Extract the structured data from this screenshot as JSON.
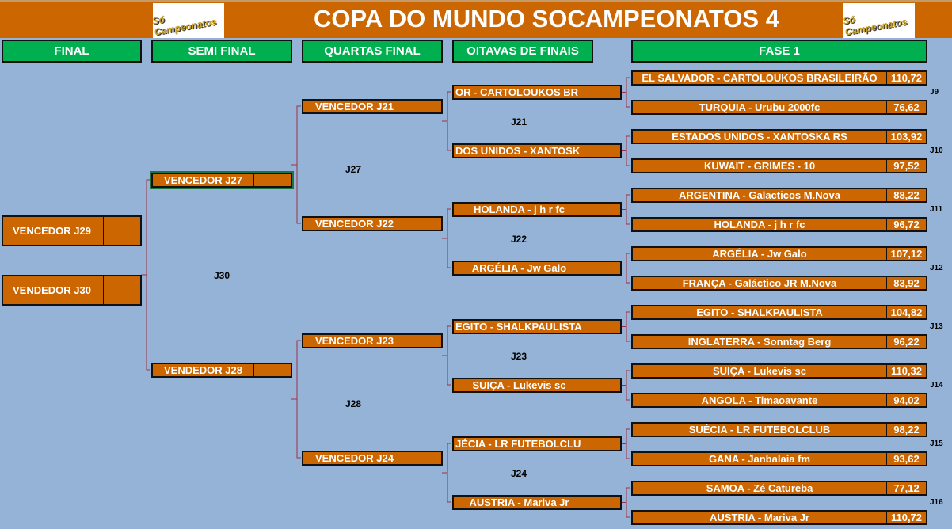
{
  "header": {
    "title": "COPA DO MUNDO SOCAMPEONATOS 4",
    "logo_text": "Só Campeonatos"
  },
  "columns": [
    "FINAL",
    "SEMI FINAL",
    "QUARTAS FINAL",
    "OITAVAS DE FINAIS",
    "FASE 1"
  ],
  "colors": {
    "header_bg": "#cc6600",
    "column_header_bg": "#00b050",
    "background": "#95b3d7",
    "box_bg": "#cc6600",
    "connector": "#a0304a"
  },
  "fase1": [
    {
      "team": "EL SALVADOR - CARTOLOUKOS BRASILEIRÃO",
      "score": "110,72"
    },
    {
      "team": "TURQUIA - Urubu 2000fc",
      "score": "76,62"
    },
    {
      "team": "ESTADOS UNIDOS - XANTOSKA RS",
      "score": "103,92"
    },
    {
      "team": "KUWAIT - GRIMES - 10",
      "score": "97,52"
    },
    {
      "team": "ARGENTINA - Galacticos M.Nova",
      "score": "88,22"
    },
    {
      "team": "HOLANDA - j h r fc",
      "score": "96,72"
    },
    {
      "team": "ARGÉLIA - Jw Galo",
      "score": "107,12"
    },
    {
      "team": "FRANÇA - Galáctico JR M.Nova",
      "score": "83,92"
    },
    {
      "team": "EGITO  - SHALKPAULISTA",
      "score": "104,82"
    },
    {
      "team": "INGLATERRA - Sonntag Berg",
      "score": "96,22"
    },
    {
      "team": "SUIÇA - Lukevis sc",
      "score": "110,32"
    },
    {
      "team": "ANGOLA - Timaoavante",
      "score": "94,02"
    },
    {
      "team": "SUÉCIA - LR FUTEBOLCLUB",
      "score": "98,22"
    },
    {
      "team": "GANA - Janbalaia fm",
      "score": "93,62"
    },
    {
      "team": "SAMOA - Zé Catureba",
      "score": "77,12"
    },
    {
      "team": "AUSTRIA - Mariva Jr",
      "score": "110,72"
    }
  ],
  "fase1_games": [
    "J9",
    "J10",
    "J11",
    "J12",
    "J13",
    "J14",
    "J15",
    "J16"
  ],
  "oitavas": [
    {
      "team": "OR - CARTOLOUKOS BR",
      "clipped": true
    },
    {
      "team": "DOS UNIDOS - XANTOSK",
      "clipped": true
    },
    {
      "team": "HOLANDA - j h r fc",
      "clipped": false
    },
    {
      "team": "ARGÉLIA - Jw Galo",
      "clipped": false
    },
    {
      "team": "EGITO  - SHALKPAULISTA",
      "clipped": true
    },
    {
      "team": "SUIÇA - Lukevis sc",
      "clipped": false
    },
    {
      "team": "JÉCIA - LR FUTEBOLCLU",
      "clipped": true
    },
    {
      "team": "AUSTRIA - Mariva Jr",
      "clipped": false
    }
  ],
  "oitavas_games": [
    "J21",
    "J22",
    "J23",
    "J24"
  ],
  "quartas": [
    "VENCEDOR J21",
    "VENCEDOR J22",
    "VENCEDOR J23",
    "VENCEDOR J24"
  ],
  "quartas_games": [
    "J27",
    "J28"
  ],
  "semi": [
    "VENCEDOR J27",
    "VENDEDOR J28"
  ],
  "semi_games": [
    "J30"
  ],
  "final": [
    "VENCEDOR J29",
    "VENDEDOR J30"
  ]
}
